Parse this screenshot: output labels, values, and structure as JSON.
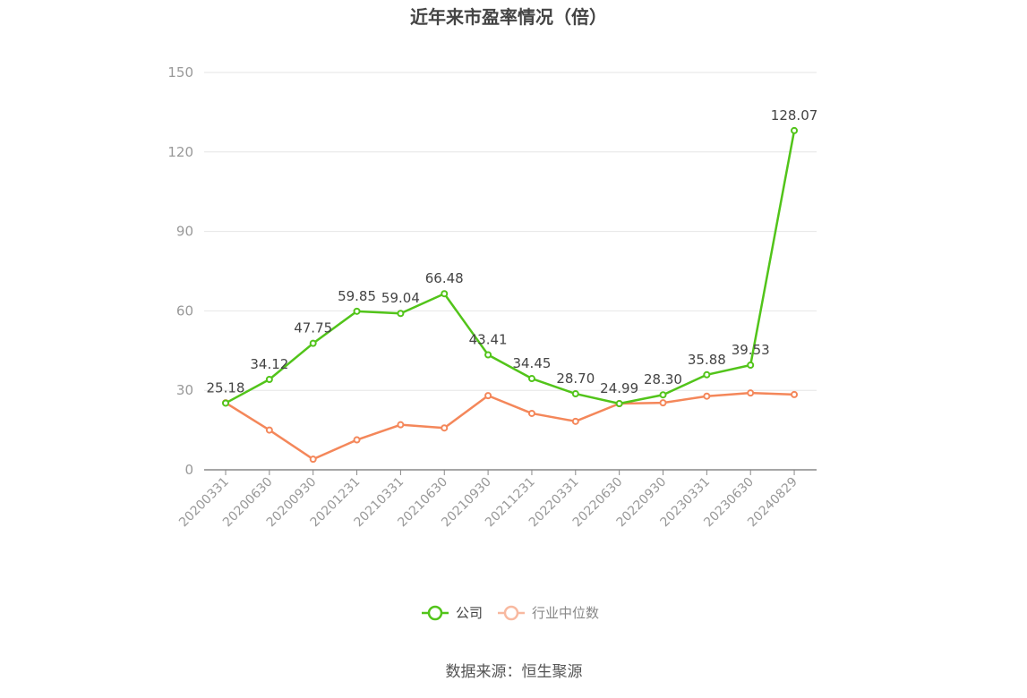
{
  "chart_data": {
    "type": "line",
    "title": "近年来市盈率情况（倍）",
    "categories": [
      "20200331",
      "20200630",
      "20200930",
      "20201231",
      "20210331",
      "20210630",
      "20210930",
      "20211231",
      "20220331",
      "20220630",
      "20220930",
      "20230331",
      "20230630",
      "20240829"
    ],
    "ylim": [
      0,
      150
    ],
    "yticks": [
      0,
      30,
      60,
      90,
      120,
      150
    ],
    "grid": true,
    "legend_position": "bottom",
    "series": [
      {
        "name": "公司",
        "color": "#52c41a",
        "show_labels": true,
        "values": [
          25.18,
          34.12,
          47.75,
          59.85,
          59.04,
          66.48,
          43.41,
          34.45,
          28.7,
          24.99,
          28.3,
          35.88,
          39.53,
          128.07
        ],
        "labels": [
          "25.18",
          "34.12",
          "47.75",
          "59.85",
          "59.04",
          "66.48",
          "43.41",
          "34.45",
          "28.70",
          "24.99",
          "28.30",
          "35.88",
          "39.53",
          "128.07"
        ]
      },
      {
        "name": "行业中位数",
        "color": "#f4875a",
        "legend_color": "#f8b9a0",
        "show_labels": false,
        "values": [
          25.3,
          15.0,
          4.0,
          11.3,
          17.0,
          15.8,
          28.0,
          21.3,
          18.3,
          25.0,
          25.3,
          27.8,
          29.0,
          28.4
        ]
      }
    ],
    "source": "数据来源：恒生聚源"
  }
}
